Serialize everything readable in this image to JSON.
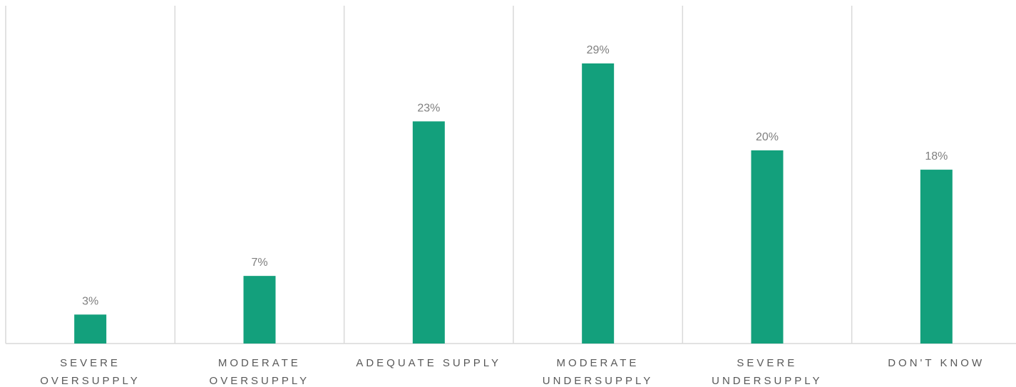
{
  "chart_data": {
    "type": "bar",
    "categories": [
      "SEVERE\nOVERSUPPLY",
      "MODERATE\nOVERSUPPLY",
      "ADEQUATE SUPPLY",
      "MODERATE\nUNDERSUPPLY",
      "SEVERE\nUNDERSUPPLY",
      "DON'T KNOW"
    ],
    "values": [
      3,
      7,
      23,
      29,
      20,
      18
    ],
    "value_labels": [
      "3%",
      "7%",
      "23%",
      "29%",
      "20%",
      "18%"
    ],
    "color": "#13a07c"
  }
}
